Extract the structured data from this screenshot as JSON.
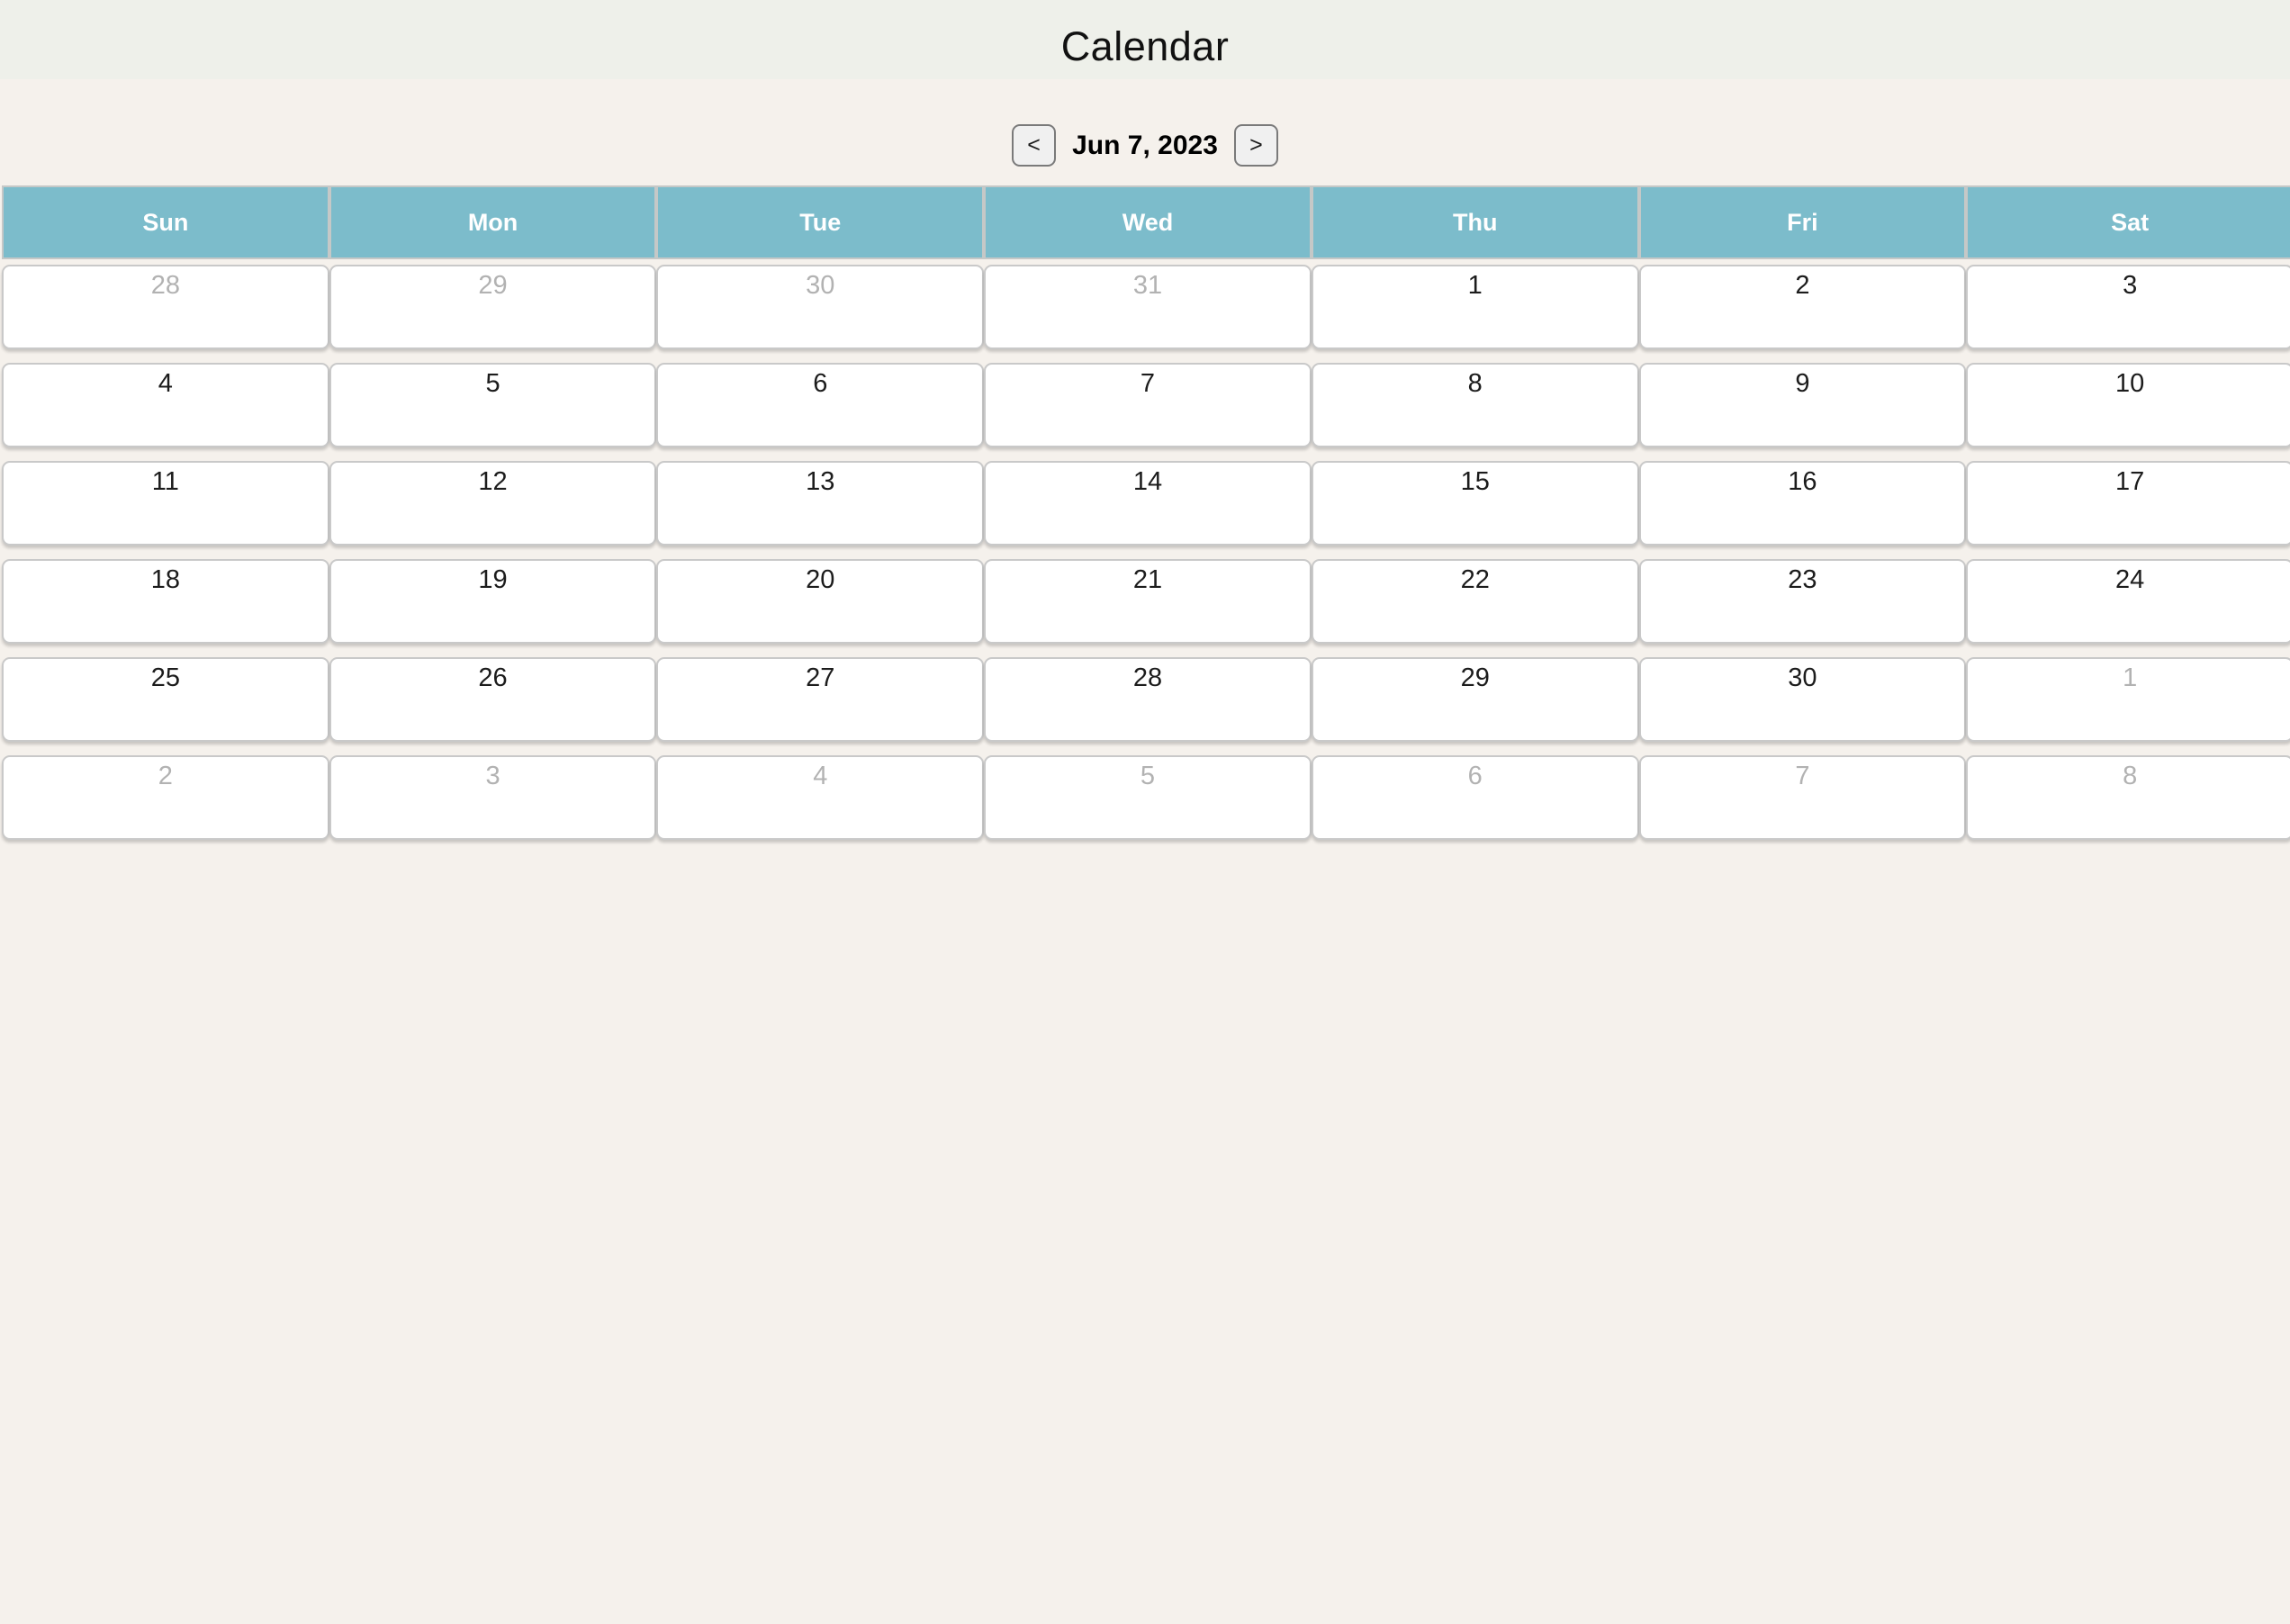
{
  "header": {
    "title": "Calendar"
  },
  "nav": {
    "prev_label": "<",
    "date_label": "Jun 7, 2023",
    "next_label": ">"
  },
  "calendar": {
    "weekdays": [
      "Sun",
      "Mon",
      "Tue",
      "Wed",
      "Thu",
      "Fri",
      "Sat"
    ],
    "weeks": [
      [
        {
          "day": "28",
          "outside": true
        },
        {
          "day": "29",
          "outside": true
        },
        {
          "day": "30",
          "outside": true
        },
        {
          "day": "31",
          "outside": true
        },
        {
          "day": "1",
          "outside": false
        },
        {
          "day": "2",
          "outside": false
        },
        {
          "day": "3",
          "outside": false
        }
      ],
      [
        {
          "day": "4",
          "outside": false
        },
        {
          "day": "5",
          "outside": false
        },
        {
          "day": "6",
          "outside": false
        },
        {
          "day": "7",
          "outside": false
        },
        {
          "day": "8",
          "outside": false
        },
        {
          "day": "9",
          "outside": false
        },
        {
          "day": "10",
          "outside": false
        }
      ],
      [
        {
          "day": "11",
          "outside": false
        },
        {
          "day": "12",
          "outside": false
        },
        {
          "day": "13",
          "outside": false
        },
        {
          "day": "14",
          "outside": false
        },
        {
          "day": "15",
          "outside": false
        },
        {
          "day": "16",
          "outside": false
        },
        {
          "day": "17",
          "outside": false
        }
      ],
      [
        {
          "day": "18",
          "outside": false
        },
        {
          "day": "19",
          "outside": false
        },
        {
          "day": "20",
          "outside": false
        },
        {
          "day": "21",
          "outside": false
        },
        {
          "day": "22",
          "outside": false
        },
        {
          "day": "23",
          "outside": false
        },
        {
          "day": "24",
          "outside": false
        }
      ],
      [
        {
          "day": "25",
          "outside": false
        },
        {
          "day": "26",
          "outside": false
        },
        {
          "day": "27",
          "outside": false
        },
        {
          "day": "28",
          "outside": false
        },
        {
          "day": "29",
          "outside": false
        },
        {
          "day": "30",
          "outside": false
        },
        {
          "day": "1",
          "outside": true
        }
      ],
      [
        {
          "day": "2",
          "outside": true
        },
        {
          "day": "3",
          "outside": true
        },
        {
          "day": "4",
          "outside": true
        },
        {
          "day": "5",
          "outside": true
        },
        {
          "day": "6",
          "outside": true
        },
        {
          "day": "7",
          "outside": true
        },
        {
          "day": "8",
          "outside": true
        }
      ]
    ]
  },
  "colors": {
    "page_background": "#f5f1ec",
    "app_bar_background": "#eef0ea",
    "weekday_header_background": "#7cbccb",
    "weekday_header_text": "#ffffff",
    "day_text": "#1c1c1c",
    "outside_month_day_text": "#b2b2b2",
    "cell_border": "#c9c9c9"
  }
}
